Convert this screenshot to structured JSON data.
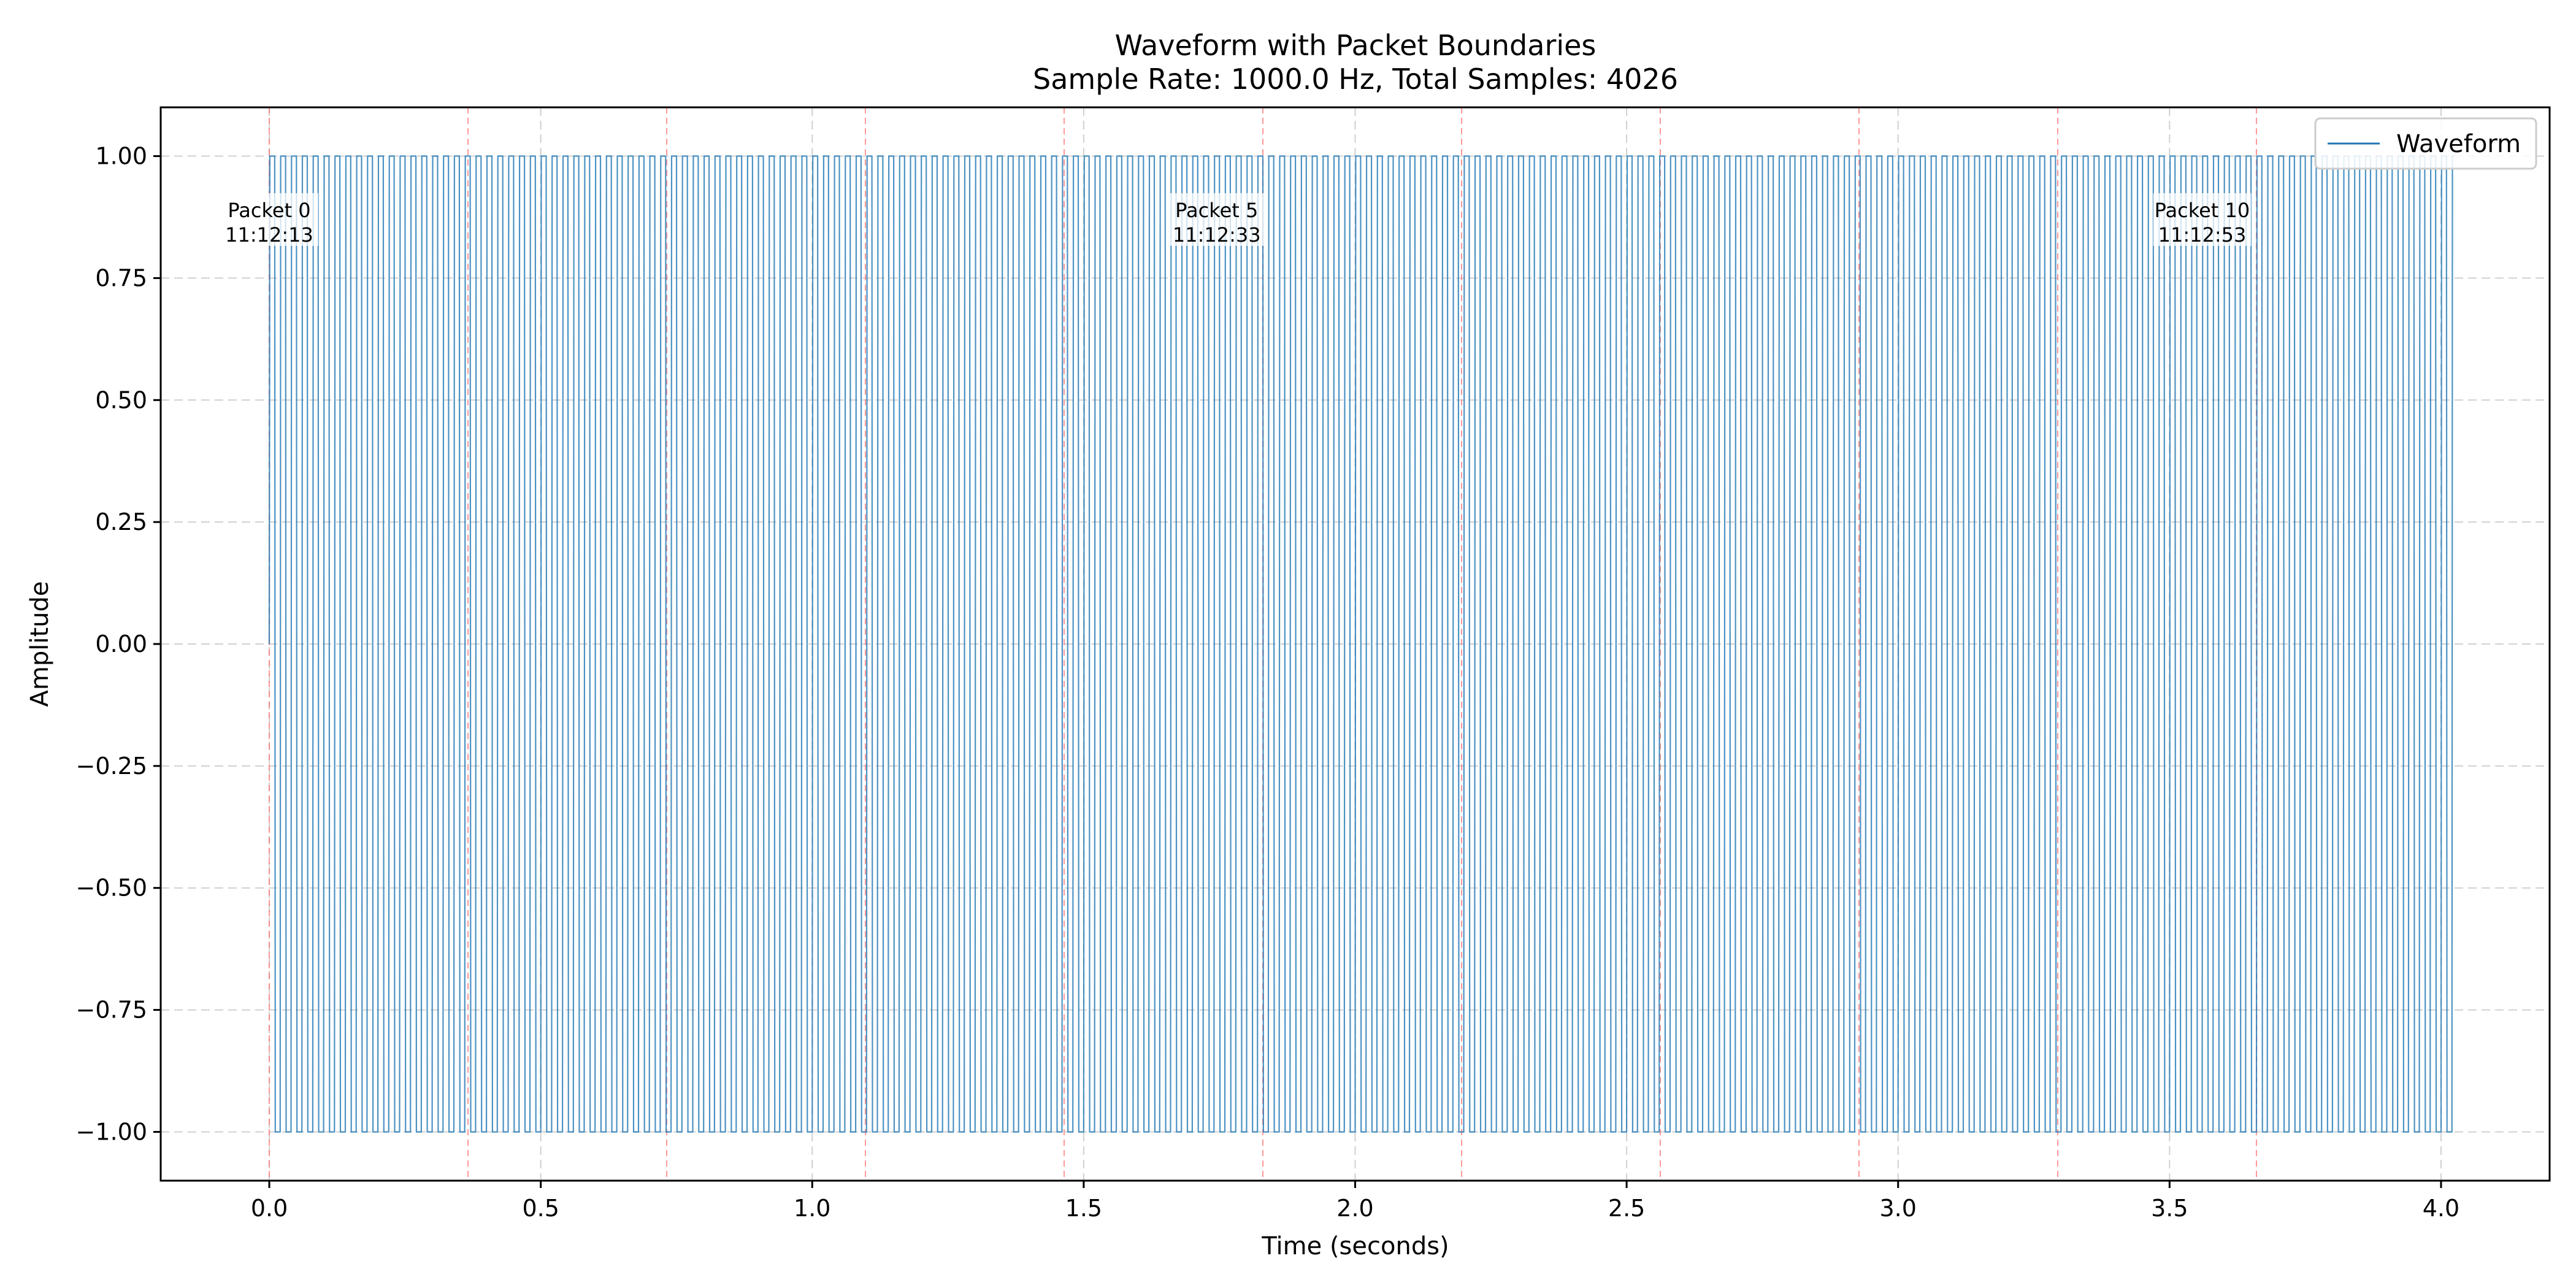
{
  "chart_data": {
    "type": "line",
    "title": "Waveform with Packet Boundaries",
    "subtitle": "Sample Rate: 1000.0 Hz, Total Samples: 4026",
    "xlabel": "Time (seconds)",
    "ylabel": "Amplitude",
    "xlim": [
      -0.2,
      4.2
    ],
    "ylim": [
      -1.1,
      1.1
    ],
    "x_ticks": [
      "0.0",
      "0.5",
      "1.0",
      "1.5",
      "2.0",
      "2.5",
      "3.0",
      "3.5",
      "4.0"
    ],
    "x_tick_values": [
      0,
      0.5,
      1.0,
      1.5,
      2.0,
      2.5,
      3.0,
      3.5,
      4.0
    ],
    "y_ticks": [
      "1.00",
      "0.75",
      "0.50",
      "0.25",
      "0.00",
      "−0.25",
      "−0.50",
      "−0.75",
      "−1.00"
    ],
    "y_tick_values": [
      1.0,
      0.75,
      0.5,
      0.25,
      0.0,
      -0.25,
      -0.5,
      -0.75,
      -1.0
    ],
    "grid": true,
    "legend_position": "top-right",
    "series": [
      {
        "name": "Waveform",
        "color": "#1f77b4",
        "sample_rate_hz": 1000.0,
        "total_samples": 4026,
        "cycle_period_s": 0.02,
        "amplitude_min": -1.0,
        "amplitude_max": 1.0
      }
    ],
    "packet_boundaries": {
      "color": "#ff6b6b",
      "times": [
        0.0,
        0.366,
        0.732,
        1.098,
        1.464,
        1.83,
        2.196,
        2.562,
        2.928,
        3.294,
        3.66
      ]
    },
    "annotations": [
      {
        "packet": "Packet 0",
        "time": "11:12:13",
        "x": 0.0,
        "y": 0.86
      },
      {
        "packet": "Packet 5",
        "time": "11:12:33",
        "x": 1.745,
        "y": 0.86
      },
      {
        "packet": "Packet 10",
        "time": "11:12:53",
        "x": 3.56,
        "y": 0.86
      }
    ]
  }
}
